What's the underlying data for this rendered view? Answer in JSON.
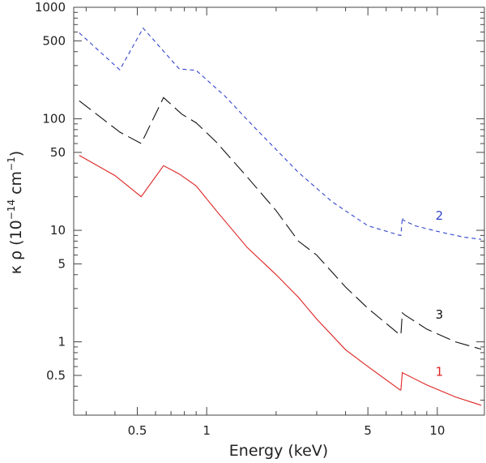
{
  "chart_data": {
    "type": "line",
    "x_scale": "log",
    "y_scale": "log",
    "xlim": [
      0.265,
      16
    ],
    "ylim": [
      0.22,
      1000
    ],
    "xlabel": "Energy (keV)",
    "ylabel": {
      "base": "κ ρ  (10",
      "exp1": "−14",
      "mid": " cm",
      "exp2": "−1",
      "end": ")"
    },
    "x_ticks": [
      {
        "value": 0.5,
        "label": "0.5"
      },
      {
        "value": 1,
        "label": "1"
      },
      {
        "value": 5,
        "label": "5"
      },
      {
        "value": 10,
        "label": "10"
      }
    ],
    "y_ticks": [
      {
        "value": 0.5,
        "label": "0.5"
      },
      {
        "value": 1,
        "label": "1"
      },
      {
        "value": 5,
        "label": "5"
      },
      {
        "value": 10,
        "label": "10"
      },
      {
        "value": 50,
        "label": "50"
      },
      {
        "value": 100,
        "label": "100"
      },
      {
        "value": 500,
        "label": "500"
      },
      {
        "value": 1000,
        "label": "1000"
      }
    ],
    "series": [
      {
        "name": "2",
        "color": "#3344cc",
        "dash": "5,4",
        "label_at": [
          10.2,
          13.5
        ],
        "points": [
          [
            0.28,
            590
          ],
          [
            0.42,
            275
          ],
          [
            0.53,
            650
          ],
          [
            0.76,
            280
          ],
          [
            0.9,
            272
          ],
          [
            1.2,
            160
          ],
          [
            1.6,
            85
          ],
          [
            2.5,
            33
          ],
          [
            3.5,
            18
          ],
          [
            5,
            11
          ],
          [
            6.9,
            9.0
          ],
          [
            6.95,
            9.0
          ],
          [
            7.05,
            13.0
          ],
          [
            7.1,
            12.4
          ],
          [
            8,
            11
          ],
          [
            10,
            9.8
          ],
          [
            13,
            8.7
          ],
          [
            15.5,
            8.3
          ]
        ]
      },
      {
        "name": "3",
        "color": "#111111",
        "dash": "18,7",
        "label_at": [
          10.2,
          1.75
        ],
        "points": [
          [
            0.28,
            145
          ],
          [
            0.42,
            76
          ],
          [
            0.52,
            60
          ],
          [
            0.65,
            155
          ],
          [
            0.78,
            110
          ],
          [
            0.9,
            92
          ],
          [
            1.1,
            62
          ],
          [
            1.5,
            30
          ],
          [
            2,
            15
          ],
          [
            2.5,
            8
          ],
          [
            3,
            6
          ],
          [
            4,
            3.1
          ],
          [
            5,
            2.0
          ],
          [
            6.9,
            1.15
          ],
          [
            6.95,
            1.15
          ],
          [
            7.05,
            1.82
          ],
          [
            7.2,
            1.75
          ],
          [
            9,
            1.3
          ],
          [
            12,
            1.0
          ],
          [
            15.5,
            0.86
          ]
        ]
      },
      {
        "name": "1",
        "color": "#dd2222",
        "dash": "",
        "label_at": [
          10.2,
          0.54
        ],
        "points": [
          [
            0.28,
            47
          ],
          [
            0.4,
            31
          ],
          [
            0.52,
            20
          ],
          [
            0.65,
            38
          ],
          [
            0.76,
            32
          ],
          [
            0.9,
            25
          ],
          [
            1.1,
            15
          ],
          [
            1.5,
            7
          ],
          [
            2,
            4
          ],
          [
            2.5,
            2.5
          ],
          [
            3,
            1.6
          ],
          [
            4,
            0.85
          ],
          [
            5,
            0.6
          ],
          [
            6.9,
            0.37
          ],
          [
            6.95,
            0.37
          ],
          [
            7.05,
            0.53
          ],
          [
            7.3,
            0.51
          ],
          [
            9,
            0.41
          ],
          [
            12,
            0.32
          ],
          [
            15.5,
            0.27
          ]
        ]
      }
    ]
  }
}
